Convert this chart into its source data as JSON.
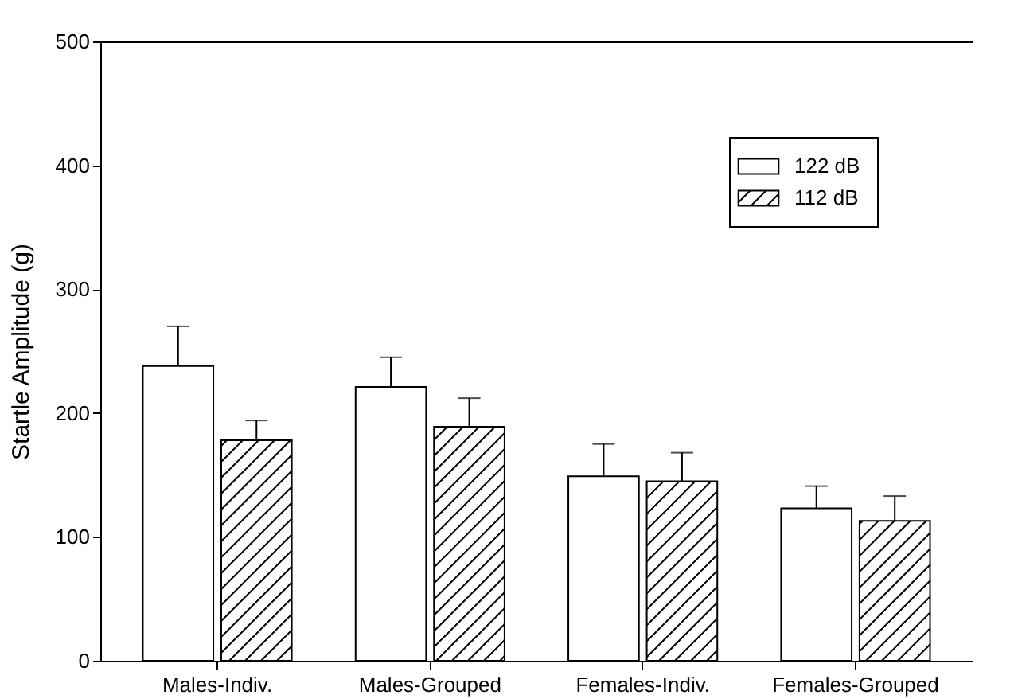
{
  "chart_data": {
    "type": "bar",
    "ylabel": "Startle Amplitude (g)",
    "categories": [
      "Males-Indiv.",
      "Males-Grouped",
      "Females-Indiv.",
      "Females-Grouped"
    ],
    "series": [
      {
        "name": "122 dB",
        "color": "#ffffff",
        "values": [
          238,
          221,
          149,
          123
        ],
        "errors": [
          [
            238,
            270
          ],
          [
            221,
            245
          ],
          [
            149,
            175
          ],
          [
            123,
            141
          ]
        ]
      },
      {
        "name": "112 dB",
        "color": "#000000",
        "values": [
          178,
          189,
          145,
          113
        ],
        "errors": [
          [
            178,
            194
          ],
          [
            189,
            212
          ],
          [
            145,
            168
          ],
          [
            113,
            133
          ]
        ]
      }
    ],
    "ylim": [
      0,
      500
    ],
    "yticks": [
      0,
      100,
      200,
      300,
      400,
      500
    ],
    "grid": false,
    "legend": "top right"
  }
}
